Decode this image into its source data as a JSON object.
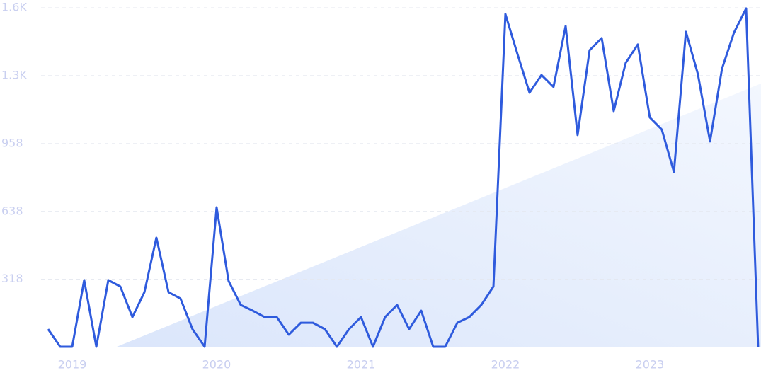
{
  "chart_data": {
    "type": "line",
    "x": [
      2018.833,
      2018.917,
      2019.0,
      2019.083,
      2019.167,
      2019.25,
      2019.333,
      2019.417,
      2019.5,
      2019.583,
      2019.667,
      2019.75,
      2019.833,
      2019.917,
      2020.0,
      2020.083,
      2020.167,
      2020.25,
      2020.333,
      2020.417,
      2020.5,
      2020.583,
      2020.667,
      2020.75,
      2020.833,
      2020.917,
      2021.0,
      2021.083,
      2021.167,
      2021.25,
      2021.333,
      2021.417,
      2021.5,
      2021.583,
      2021.667,
      2021.75,
      2021.833,
      2021.917,
      2022.0,
      2022.083,
      2022.167,
      2022.25,
      2022.333,
      2022.417,
      2022.5,
      2022.583,
      2022.667,
      2022.75,
      2022.833,
      2022.917,
      2023.0,
      2023.083,
      2023.167,
      2023.25,
      2023.333,
      2023.417,
      2023.5,
      2023.583,
      2023.667,
      2023.75
    ],
    "series": [
      {
        "color": "#2f5bdd",
        "values": [
          83,
          0,
          0,
          314,
          0,
          314,
          284,
          140,
          257,
          514,
          257,
          227,
          83,
          0,
          657,
          310,
          197,
          170,
          140,
          140,
          57,
          113,
          113,
          83,
          0,
          83,
          140,
          0,
          140,
          197,
          83,
          170,
          0,
          0,
          113,
          140,
          197,
          284,
          1568,
          1381,
          1198,
          1281,
          1225,
          1512,
          998,
          1398,
          1455,
          1111,
          1338,
          1425,
          1081,
          1024,
          824,
          1485,
          1285,
          968,
          1311,
          1481,
          1595,
          0
        ]
      }
    ],
    "xlim": [
      2018.5,
      2023.77
    ],
    "xticks": [
      2019,
      2020,
      2021,
      2022,
      2023
    ],
    "ylim": [
      0,
      1598
    ],
    "yticks": [
      318,
      638,
      958,
      {
        "value": 1278,
        "label": "1.3K"
      },
      {
        "value": 1598,
        "label": "1.6K"
      }
    ],
    "grid": true
  }
}
